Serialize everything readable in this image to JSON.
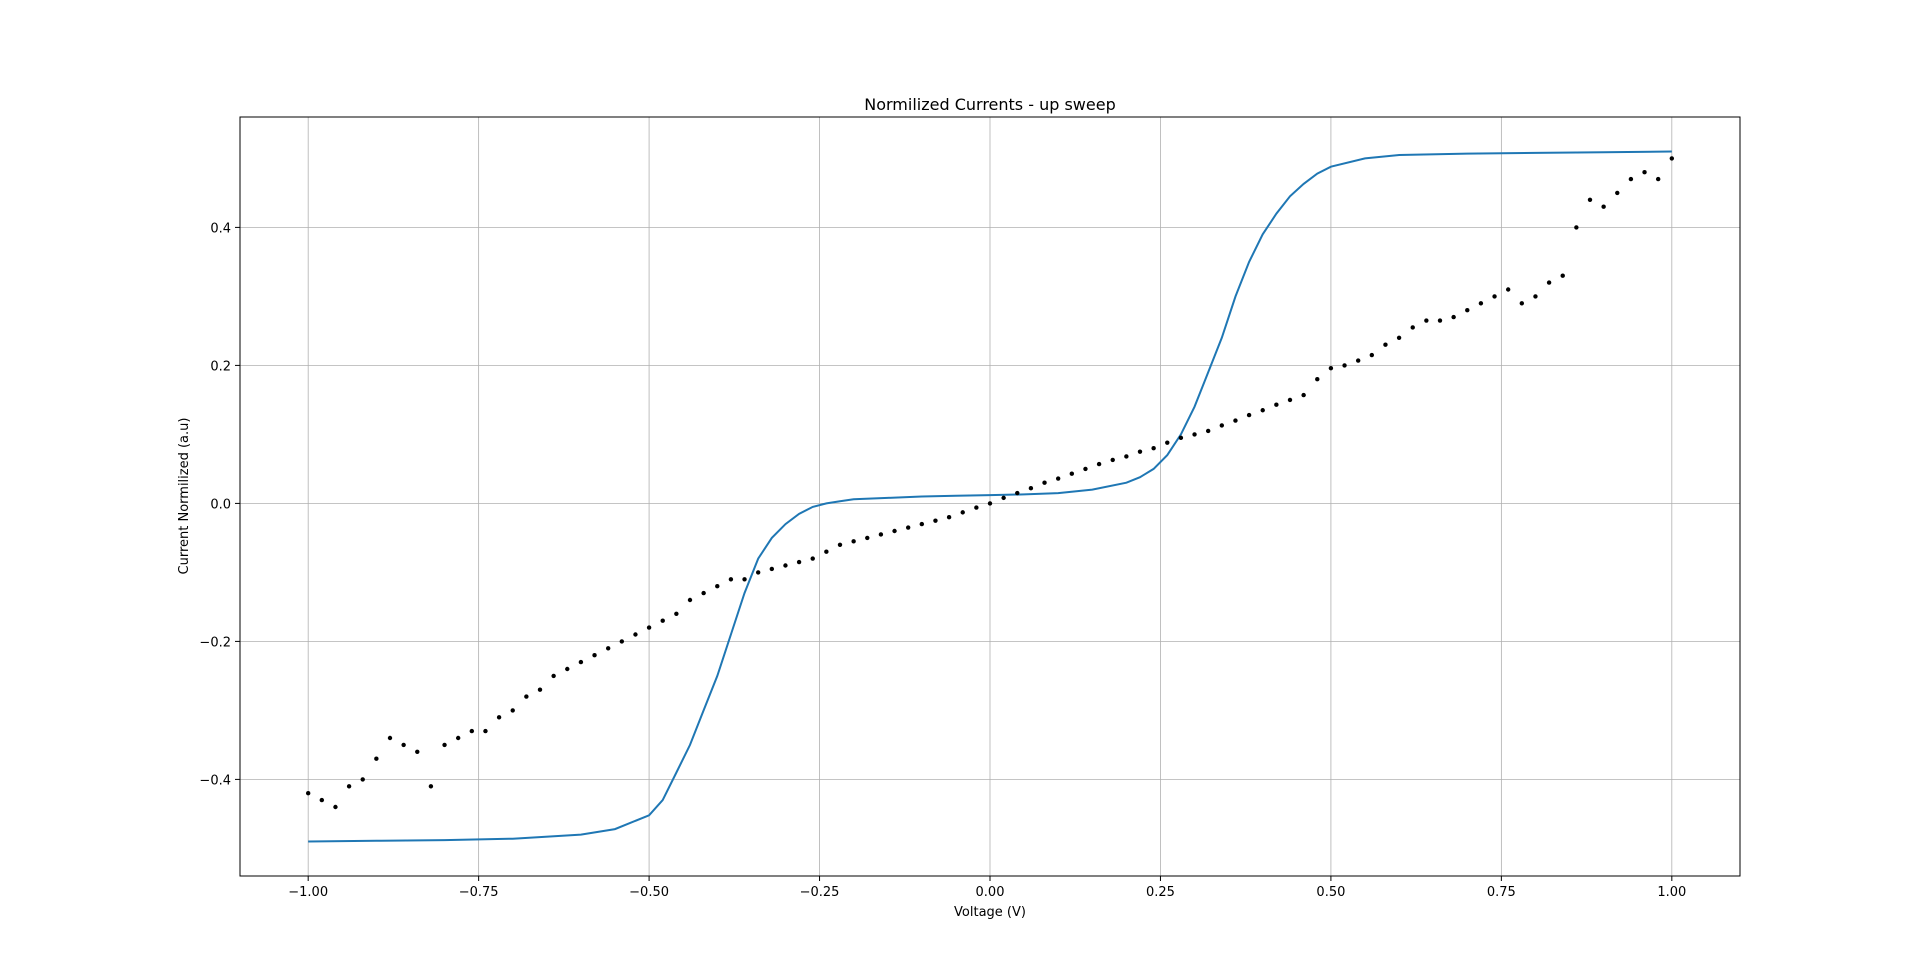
{
  "chart_data": {
    "type": "scatter",
    "title": "Normilized Currents - up sweep",
    "xlabel": "Voltage (V)",
    "ylabel": "Current Normilized (a.u)",
    "xlim": [
      -1.1,
      1.1
    ],
    "ylim": [
      -0.54,
      0.56
    ],
    "grid": true,
    "xticks": [
      -1.0,
      -0.75,
      -0.5,
      -0.25,
      0.0,
      0.25,
      0.5,
      0.75,
      1.0
    ],
    "xtick_labels": [
      "−1.00",
      "−0.75",
      "−0.50",
      "−0.25",
      "0.00",
      "0.25",
      "0.50",
      "0.75",
      "1.00"
    ],
    "yticks": [
      -0.4,
      -0.2,
      0.0,
      0.2,
      0.4
    ],
    "ytick_labels": [
      "−0.4",
      "−0.2",
      "0.0",
      "0.2",
      "0.4"
    ],
    "series": [
      {
        "kind": "scatter",
        "color": "#000000",
        "x": [
          -1.0,
          -0.98,
          -0.96,
          -0.94,
          -0.92,
          -0.9,
          -0.88,
          -0.86,
          -0.84,
          -0.82,
          -0.8,
          -0.78,
          -0.76,
          -0.74,
          -0.72,
          -0.7,
          -0.68,
          -0.66,
          -0.64,
          -0.62,
          -0.6,
          -0.58,
          -0.56,
          -0.54,
          -0.52,
          -0.5,
          -0.48,
          -0.46,
          -0.44,
          -0.42,
          -0.4,
          -0.38,
          -0.36,
          -0.34,
          -0.32,
          -0.3,
          -0.28,
          -0.26,
          -0.24,
          -0.22,
          -0.2,
          -0.18,
          -0.16,
          -0.14,
          -0.12,
          -0.1,
          -0.08,
          -0.06,
          -0.04,
          -0.02,
          0.0,
          0.02,
          0.04,
          0.06,
          0.08,
          0.1,
          0.12,
          0.14,
          0.16,
          0.18,
          0.2,
          0.22,
          0.24,
          0.26,
          0.28,
          0.3,
          0.32,
          0.34,
          0.36,
          0.38,
          0.4,
          0.42,
          0.44,
          0.46,
          0.48,
          0.5,
          0.52,
          0.54,
          0.56,
          0.58,
          0.6,
          0.62,
          0.64,
          0.66,
          0.68,
          0.7,
          0.72,
          0.74,
          0.76,
          0.78,
          0.8,
          0.82,
          0.84,
          0.86,
          0.88,
          0.9,
          0.92,
          0.94,
          0.96,
          0.98,
          1.0
        ],
        "y": [
          -0.42,
          -0.43,
          -0.44,
          -0.41,
          -0.4,
          -0.37,
          -0.34,
          -0.35,
          -0.36,
          -0.41,
          -0.35,
          -0.34,
          -0.33,
          -0.33,
          -0.31,
          -0.3,
          -0.28,
          -0.27,
          -0.25,
          -0.24,
          -0.23,
          -0.22,
          -0.21,
          -0.2,
          -0.19,
          -0.18,
          -0.17,
          -0.16,
          -0.14,
          -0.13,
          -0.12,
          -0.11,
          -0.11,
          -0.1,
          -0.095,
          -0.09,
          -0.085,
          -0.08,
          -0.07,
          -0.06,
          -0.055,
          -0.05,
          -0.045,
          -0.04,
          -0.035,
          -0.03,
          -0.025,
          -0.02,
          -0.013,
          -0.006,
          0.0,
          0.008,
          0.015,
          0.022,
          0.03,
          0.036,
          0.043,
          0.05,
          0.057,
          0.063,
          0.068,
          0.075,
          0.08,
          0.088,
          0.095,
          0.1,
          0.105,
          0.113,
          0.12,
          0.128,
          0.135,
          0.143,
          0.15,
          0.157,
          0.18,
          0.196,
          0.2,
          0.207,
          0.215,
          0.23,
          0.24,
          0.255,
          0.265,
          0.265,
          0.27,
          0.28,
          0.29,
          0.3,
          0.31,
          0.29,
          0.3,
          0.32,
          0.33,
          0.4,
          0.44,
          0.43,
          0.45,
          0.47,
          0.48,
          0.47,
          0.5
        ]
      },
      {
        "kind": "line",
        "color": "#1f77b4",
        "x": [
          -1.0,
          -0.9,
          -0.8,
          -0.7,
          -0.6,
          -0.55,
          -0.5,
          -0.48,
          -0.46,
          -0.44,
          -0.42,
          -0.4,
          -0.38,
          -0.36,
          -0.34,
          -0.32,
          -0.3,
          -0.28,
          -0.26,
          -0.24,
          -0.22,
          -0.2,
          -0.15,
          -0.1,
          -0.05,
          0.0,
          0.05,
          0.1,
          0.15,
          0.2,
          0.22,
          0.24,
          0.26,
          0.28,
          0.3,
          0.32,
          0.34,
          0.36,
          0.38,
          0.4,
          0.42,
          0.44,
          0.46,
          0.48,
          0.5,
          0.55,
          0.6,
          0.7,
          0.8,
          0.9,
          1.0
        ],
        "y": [
          -0.49,
          -0.489,
          -0.488,
          -0.486,
          -0.48,
          -0.472,
          -0.452,
          -0.43,
          -0.39,
          -0.35,
          -0.3,
          -0.25,
          -0.19,
          -0.13,
          -0.08,
          -0.05,
          -0.03,
          -0.015,
          -0.005,
          0.0,
          0.003,
          0.006,
          0.008,
          0.01,
          0.011,
          0.012,
          0.013,
          0.015,
          0.02,
          0.03,
          0.038,
          0.05,
          0.07,
          0.1,
          0.14,
          0.19,
          0.24,
          0.3,
          0.35,
          0.39,
          0.42,
          0.445,
          0.463,
          0.478,
          0.488,
          0.5,
          0.505,
          0.507,
          0.508,
          0.509,
          0.51
        ]
      }
    ]
  }
}
